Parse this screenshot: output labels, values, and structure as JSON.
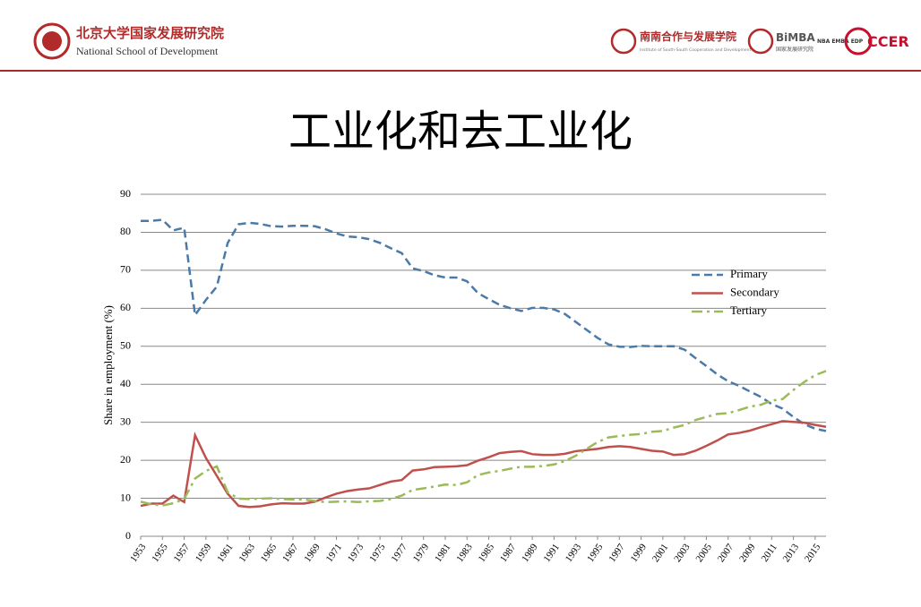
{
  "header": {
    "org_cn": "北京大学国家发展研究院",
    "org_en": "National School of Development",
    "partner_cn": "南南合作与发展学院",
    "partner_en": "Institute of South-South Cooperation and Development",
    "bimba": "BiMBA",
    "bimba_cn": "国家发展研究院",
    "programs": "NBA EMBA EDP",
    "ccer": "CCER"
  },
  "chart_data": {
    "type": "line",
    "title": "工业化和去工业化",
    "y_label": "Share in employment (%)",
    "x": [
      1953,
      1954,
      1955,
      1956,
      1957,
      1958,
      1959,
      1960,
      1961,
      1962,
      1963,
      1964,
      1965,
      1966,
      1967,
      1968,
      1969,
      1970,
      1971,
      1972,
      1973,
      1974,
      1975,
      1976,
      1977,
      1978,
      1979,
      1980,
      1981,
      1982,
      1983,
      1984,
      1985,
      1986,
      1987,
      1988,
      1989,
      1990,
      1991,
      1992,
      1993,
      1994,
      1995,
      1996,
      1997,
      1998,
      1999,
      2000,
      2001,
      2002,
      2003,
      2004,
      2005,
      2006,
      2007,
      2008,
      2009,
      2010,
      2011,
      2012,
      2013,
      2014,
      2015,
      2016
    ],
    "xlim": [
      1953,
      2016
    ],
    "xticks": [
      1953,
      1955,
      1957,
      1959,
      1961,
      1963,
      1965,
      1967,
      1969,
      1971,
      1973,
      1975,
      1977,
      1979,
      1981,
      1983,
      1985,
      1987,
      1989,
      1991,
      1993,
      1995,
      1997,
      1999,
      2001,
      2003,
      2005,
      2007,
      2009,
      2011,
      2013,
      2015
    ],
    "ylim": [
      0,
      90
    ],
    "yticks": [
      0,
      10,
      20,
      30,
      40,
      50,
      60,
      70,
      80,
      90
    ],
    "grid": true,
    "legend": "right",
    "series": [
      {
        "name": "Primary",
        "color": "#4a7aa8",
        "dash": "dashed",
        "values": [
          83,
          83,
          83.3,
          80.5,
          81.2,
          58.2,
          62.2,
          65.7,
          77.2,
          82.1,
          82.5,
          82.2,
          81.6,
          81.5,
          81.7,
          81.7,
          81.6,
          80.8,
          79.7,
          78.9,
          78.7,
          78.2,
          77.2,
          75.8,
          74.5,
          70.5,
          69.8,
          68.7,
          68.1,
          68.1,
          67.1,
          64.0,
          62.4,
          60.9,
          60.0,
          59.3,
          60.1,
          60.1,
          59.7,
          58.5,
          56.4,
          54.3,
          52.2,
          50.5,
          49.9,
          49.8,
          50.1,
          50.0,
          50.0,
          50.0,
          49.1,
          46.9,
          44.8,
          42.6,
          40.8,
          39.6,
          38.1,
          36.7,
          34.8,
          33.6,
          31.4,
          29.5,
          28.3,
          27.7
        ]
      },
      {
        "name": "Secondary",
        "color": "#c0504d",
        "dash": "solid",
        "values": [
          8.0,
          8.6,
          8.6,
          10.7,
          9.0,
          26.6,
          20.6,
          15.9,
          11.2,
          8.0,
          7.7,
          7.9,
          8.4,
          8.7,
          8.6,
          8.6,
          9.1,
          10.2,
          11.2,
          11.9,
          12.3,
          12.6,
          13.5,
          14.4,
          14.8,
          17.3,
          17.6,
          18.2,
          18.3,
          18.4,
          18.7,
          19.9,
          20.8,
          21.9,
          22.2,
          22.4,
          21.6,
          21.4,
          21.4,
          21.7,
          22.4,
          22.7,
          23.0,
          23.5,
          23.7,
          23.5,
          23.0,
          22.5,
          22.3,
          21.4,
          21.6,
          22.5,
          23.8,
          25.2,
          26.8,
          27.2,
          27.8,
          28.7,
          29.5,
          30.3,
          30.1,
          29.9,
          29.3,
          28.8
        ]
      },
      {
        "name": "Tertiary",
        "color": "#9bbb59",
        "dash": "dashdot",
        "values": [
          9.1,
          8.4,
          8.1,
          8.7,
          9.8,
          15.2,
          17.2,
          18.4,
          11.6,
          9.9,
          9.8,
          9.9,
          10.0,
          9.8,
          9.7,
          9.7,
          9.3,
          9.0,
          9.1,
          9.2,
          9.0,
          9.2,
          9.3,
          9.8,
          10.7,
          12.2,
          12.6,
          13.1,
          13.6,
          13.5,
          14.2,
          16.1,
          16.8,
          17.2,
          17.8,
          18.3,
          18.3,
          18.5,
          18.9,
          19.8,
          21.2,
          23.0,
          24.8,
          26.0,
          26.4,
          26.7,
          26.9,
          27.5,
          27.7,
          28.6,
          29.3,
          30.6,
          31.4,
          32.2,
          32.4,
          33.2,
          34.1,
          34.6,
          35.7,
          36.1,
          38.5,
          40.6,
          42.4,
          43.5
        ]
      }
    ]
  }
}
